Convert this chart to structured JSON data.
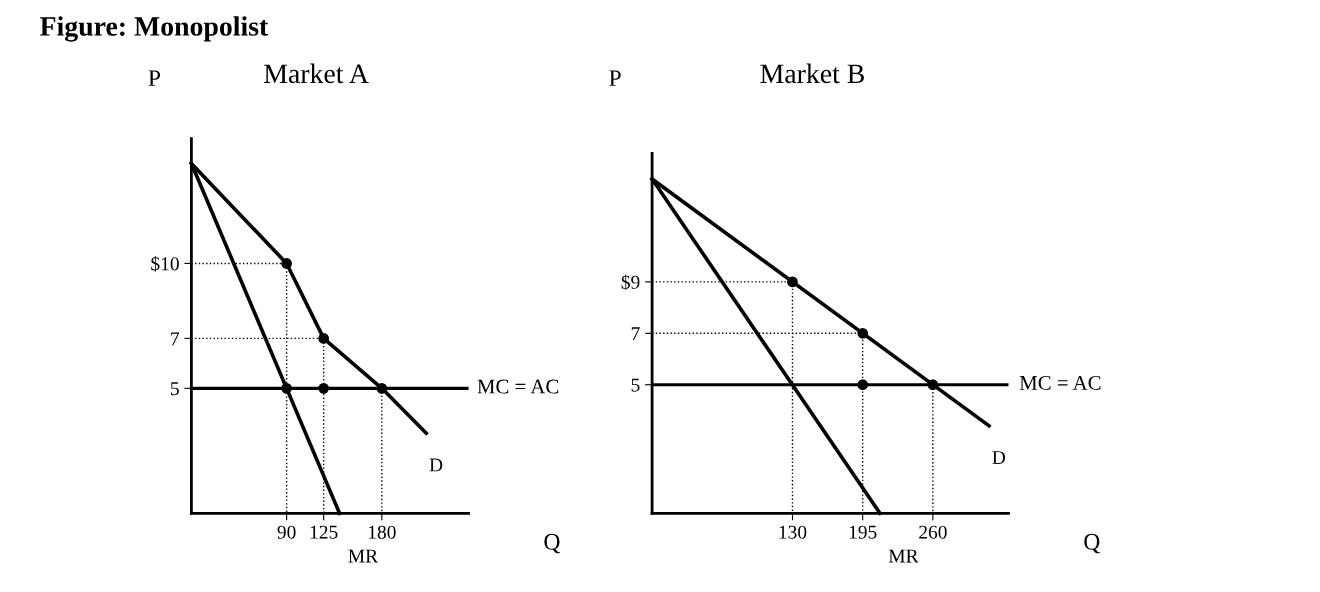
{
  "chart_data": [
    {
      "type": "line",
      "title": "Market A",
      "xlabel": "Q",
      "ylabel": "P",
      "annotations": [
        "Figure: Monopolist",
        "D",
        "MR"
      ],
      "xlim": [
        0,
        262
      ],
      "ylim": [
        0,
        15
      ],
      "xticks": [
        90,
        125,
        180
      ],
      "yticks": [
        {
          "value": 10,
          "label": "$10"
        },
        7,
        5
      ],
      "grid": false,
      "legend": false,
      "ref_lines": [
        {
          "axis": "y",
          "value": 5,
          "label": "MC = AC",
          "color": "#000000"
        }
      ],
      "series": [
        {
          "color": "#000000",
          "x": [
            0,
            90,
            125,
            180,
            222
          ],
          "values": [
            14,
            10,
            7,
            5,
            3.2
          ]
        },
        {
          "color": "#000000",
          "x": [
            0,
            90,
            140
          ],
          "values": [
            14,
            5,
            0
          ]
        },
        {
          "color": "#000000",
          "line_style": "dotted",
          "x": [
            0,
            90,
            90
          ],
          "values": [
            10,
            10,
            0
          ]
        },
        {
          "color": "#000000",
          "line_style": "dotted",
          "x": [
            0,
            125,
            125
          ],
          "values": [
            7,
            7,
            0
          ]
        },
        {
          "color": "#000000",
          "line_style": "dotted",
          "x": [
            180,
            180
          ],
          "values": [
            5,
            0
          ]
        },
        {
          "type": "scatter",
          "marker": "circle",
          "color": "#000000",
          "x": [
            90,
            125,
            125,
            90,
            180
          ],
          "values": [
            10,
            7,
            5,
            5,
            5
          ]
        }
      ]
    },
    {
      "type": "line",
      "title": "Market B",
      "xlabel": "Q",
      "ylabel": "P",
      "annotations": [
        "D",
        "MR"
      ],
      "xlim": [
        0,
        330
      ],
      "ylim": [
        0,
        14
      ],
      "xticks": [
        130,
        195,
        260
      ],
      "yticks": [
        {
          "value": 9,
          "label": "$9"
        },
        7,
        5
      ],
      "grid": false,
      "legend": false,
      "ref_lines": [
        {
          "axis": "y",
          "value": 5,
          "label": "MC = AC",
          "color": "#000000"
        }
      ],
      "series": [
        {
          "color": "#000000",
          "x": [
            0,
            312
          ],
          "values": [
            13,
            3.4
          ]
        },
        {
          "color": "#000000",
          "x": [
            0,
            211
          ],
          "values": [
            13,
            0
          ]
        },
        {
          "color": "#000000",
          "line_style": "dotted",
          "x": [
            0,
            130,
            130
          ],
          "values": [
            9,
            9,
            0
          ]
        },
        {
          "color": "#000000",
          "line_style": "dotted",
          "x": [
            0,
            195,
            195
          ],
          "values": [
            7,
            7,
            0
          ]
        },
        {
          "color": "#000000",
          "line_style": "dotted",
          "x": [
            260,
            260
          ],
          "values": [
            5,
            0
          ]
        },
        {
          "type": "scatter",
          "marker": "circle",
          "color": "#000000",
          "x": [
            130,
            195,
            195,
            260
          ],
          "values": [
            9,
            7,
            5,
            5
          ]
        }
      ]
    }
  ]
}
